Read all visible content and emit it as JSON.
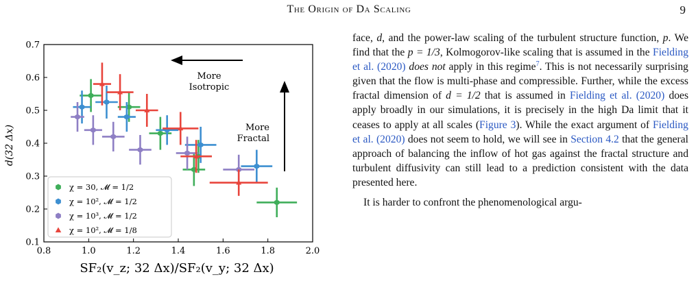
{
  "header": {
    "title": "The Origin of Da Scaling",
    "page_number": "9"
  },
  "chart_data": {
    "type": "scatter",
    "xlabel": "SF₂(v_z; 32 Δx)/SF₂(v_y; 32 Δx)",
    "ylabel": "d(32 Δx)",
    "xlim": [
      0.8,
      2.0
    ],
    "ylim": [
      0.1,
      0.7
    ],
    "xticks": [
      "0.8",
      "1.0",
      "1.2",
      "1.4",
      "1.6",
      "1.8",
      "2.0"
    ],
    "yticks": [
      "0.1",
      "0.2",
      "0.3",
      "0.4",
      "0.5",
      "0.6",
      "0.7"
    ],
    "grid": false,
    "legend_position": "lower-left",
    "annotations": [
      {
        "text_lines": [
          "More",
          "Isotropic"
        ],
        "arrow": "left"
      },
      {
        "text_lines": [
          "More",
          "Fractal"
        ],
        "arrow": "up"
      }
    ],
    "series": [
      {
        "name": "χ = 30, 𝓜 = 1/2",
        "color": "#3fae5a",
        "marker": "hexagon",
        "points": [
          {
            "x": 1.01,
            "y": 0.545,
            "xerr": 0.05,
            "yerr": 0.05
          },
          {
            "x": 1.18,
            "y": 0.51,
            "xerr": 0.05,
            "yerr": 0.045
          },
          {
            "x": 1.32,
            "y": 0.43,
            "xerr": 0.05,
            "yerr": 0.05
          },
          {
            "x": 1.47,
            "y": 0.32,
            "xerr": 0.05,
            "yerr": 0.05
          },
          {
            "x": 1.49,
            "y": 0.36,
            "xerr": 0.06,
            "yerr": 0.05
          },
          {
            "x": 1.84,
            "y": 0.22,
            "xerr": 0.09,
            "yerr": 0.045
          }
        ]
      },
      {
        "name": "χ = 10², 𝓜 = 1/2",
        "color": "#3d8fd1",
        "marker": "hexagon",
        "points": [
          {
            "x": 0.97,
            "y": 0.51,
            "xerr": 0.04,
            "yerr": 0.05
          },
          {
            "x": 1.08,
            "y": 0.525,
            "xerr": 0.05,
            "yerr": 0.05
          },
          {
            "x": 1.17,
            "y": 0.48,
            "xerr": 0.04,
            "yerr": 0.045
          },
          {
            "x": 1.35,
            "y": 0.44,
            "xerr": 0.05,
            "yerr": 0.045
          },
          {
            "x": 1.5,
            "y": 0.395,
            "xerr": 0.07,
            "yerr": 0.055
          },
          {
            "x": 1.75,
            "y": 0.33,
            "xerr": 0.07,
            "yerr": 0.05
          }
        ]
      },
      {
        "name": "χ = 10³, 𝓜 = 1/2",
        "color": "#8e7fc4",
        "marker": "hexagon",
        "points": [
          {
            "x": 0.95,
            "y": 0.48,
            "xerr": 0.03,
            "yerr": 0.045
          },
          {
            "x": 1.02,
            "y": 0.44,
            "xerr": 0.04,
            "yerr": 0.045
          },
          {
            "x": 1.11,
            "y": 0.42,
            "xerr": 0.05,
            "yerr": 0.045
          },
          {
            "x": 1.23,
            "y": 0.38,
            "xerr": 0.05,
            "yerr": 0.045
          },
          {
            "x": 1.44,
            "y": 0.37,
            "xerr": 0.05,
            "yerr": 0.05
          },
          {
            "x": 1.67,
            "y": 0.32,
            "xerr": 0.07,
            "yerr": 0.045
          }
        ]
      },
      {
        "name": "χ = 10², 𝓜 = 1/8",
        "color": "#e8453c",
        "marker": "triangle",
        "points": [
          {
            "x": 1.06,
            "y": 0.58,
            "xerr": 0.04,
            "yerr": 0.065
          },
          {
            "x": 1.14,
            "y": 0.555,
            "xerr": 0.06,
            "yerr": 0.055
          },
          {
            "x": 1.26,
            "y": 0.5,
            "xerr": 0.05,
            "yerr": 0.05
          },
          {
            "x": 1.41,
            "y": 0.445,
            "xerr": 0.08,
            "yerr": 0.05
          },
          {
            "x": 1.48,
            "y": 0.36,
            "xerr": 0.07,
            "yerr": 0.05
          },
          {
            "x": 1.67,
            "y": 0.28,
            "xerr": 0.13,
            "yerr": 0.04
          }
        ]
      }
    ]
  },
  "body": {
    "p1": {
      "t1": "face, ",
      "var_d": "d",
      "t2": ", and the power-law scaling of the turbulent structure function, ",
      "var_p": "p",
      "t3": ". We find that the ",
      "math1": "p = 1/3",
      "t4": ", Kolmogorov-like scaling that is assumed in the ",
      "link1": "Fielding et al. (2020)",
      "t5": " ",
      "emph": "does not",
      "t6": " apply in this regime",
      "footnote": "7",
      "t7": ". This is not necessarily surprising given that the flow is multi-phase and compressible. Further, while the excess fractal dimension of ",
      "math2": "d = 1/2",
      "t8": " that is assumed in ",
      "link2": "Fielding et al. (2020)",
      "t9": " does apply broadly in our simulations, it is precisely in the high Da limit that it ceases to apply at all scales (",
      "link3": "Figure 3",
      "t10": "). While the exact argument of ",
      "link4": "Fielding et al. (2020)",
      "t11": " does not seem to hold, we will see in ",
      "link5": "Section 4.2",
      "t12": " that the general approach of balancing the inflow of hot gas against the fractal structure and turbulent diffusivity can still lead to a prediction consistent with the data presented here."
    },
    "p2": "It is harder to confront the phenomenological argu-"
  }
}
